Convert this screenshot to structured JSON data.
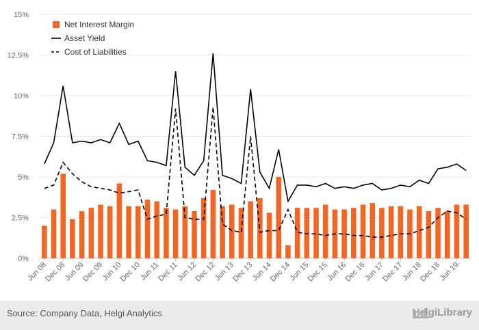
{
  "chart_data": {
    "type": "bar+line",
    "x": [
      "Jun 08",
      "Sep 08",
      "Dec 08",
      "Mar 09",
      "Jun 09",
      "Sep 09",
      "Dec 09",
      "Mar 10",
      "Jun 10",
      "Sep 10",
      "Dec 10",
      "Mar 11",
      "Jun 11",
      "Sep 11",
      "Dec 11",
      "Mar 12",
      "Jun 12",
      "Sep 12",
      "Dec 12",
      "Mar 13",
      "Jun 13",
      "Sep 13",
      "Dec 13",
      "Mar 14",
      "Jun 14",
      "Sep 14",
      "Dec 14",
      "Mar 15",
      "Jun 15",
      "Sep 15",
      "Dec 15",
      "Mar 16",
      "Jun 16",
      "Sep 16",
      "Dec 16",
      "Mar 17",
      "Jun 17",
      "Sep 17",
      "Dec 17",
      "Mar 18",
      "Jun 18",
      "Sep 18",
      "Dec 18",
      "Mar 19",
      "Jun 19",
      "Sep 19"
    ],
    "x_tick_labels": [
      "Jun 08",
      "Dec 08",
      "Jun 09",
      "Dec 09",
      "Jun 10",
      "Dec 10",
      "Jun 11",
      "Dec 11",
      "Jun 12",
      "Dec 12",
      "Jun 13",
      "Dec 13",
      "Jun 14",
      "Dec 14",
      "Jun 15",
      "Dec 15",
      "Jun 16",
      "Dec 16",
      "Jun 17",
      "Dec 17",
      "Jun 18",
      "Dec 18",
      "Jun 19"
    ],
    "y_tick_labels": [
      "0%",
      "2.5%",
      "5%",
      "7.5%",
      "10%",
      "12.5%",
      "15%"
    ],
    "y_ticks": [
      0,
      2.5,
      5,
      7.5,
      10,
      12.5,
      15
    ],
    "ylim": [
      0,
      15
    ],
    "grid": "horizontal",
    "legend_position": "top-left",
    "series": [
      {
        "name": "Net Interest Margin",
        "kind": "bar",
        "color": "#f26522",
        "values": [
          2.0,
          3.0,
          5.2,
          2.4,
          2.9,
          3.1,
          3.3,
          3.2,
          4.6,
          3.2,
          3.2,
          3.6,
          3.5,
          3.1,
          3.0,
          3.2,
          2.9,
          3.7,
          4.2,
          3.2,
          3.3,
          3.1,
          3.5,
          3.7,
          2.8,
          5.0,
          0.8,
          3.1,
          3.1,
          3.1,
          3.3,
          3.0,
          3.0,
          3.1,
          3.3,
          3.4,
          3.1,
          3.2,
          3.2,
          3.0,
          3.2,
          2.9,
          3.1,
          2.9,
          3.3,
          3.3
        ]
      },
      {
        "name": "Asset Yield",
        "kind": "line",
        "dash": "solid",
        "color": "#000000",
        "values": [
          5.8,
          7.1,
          10.6,
          7.1,
          7.2,
          7.1,
          7.3,
          7.1,
          8.3,
          7.0,
          7.2,
          6.0,
          5.9,
          5.7,
          11.5,
          5.6,
          5.1,
          6.0,
          12.6,
          5.1,
          4.9,
          4.6,
          10.4,
          5.3,
          4.3,
          6.7,
          3.5,
          4.5,
          4.5,
          4.4,
          4.6,
          4.3,
          4.4,
          4.3,
          4.5,
          4.6,
          4.2,
          4.3,
          4.5,
          4.4,
          4.8,
          4.6,
          5.5,
          5.6,
          5.8,
          5.4
        ]
      },
      {
        "name": "Cost of Liabilities",
        "kind": "line",
        "dash": "dashed",
        "color": "#000000",
        "values": [
          4.3,
          4.5,
          5.9,
          5.2,
          4.7,
          4.4,
          4.3,
          4.2,
          4.0,
          4.1,
          4.2,
          2.4,
          2.6,
          2.7,
          9.2,
          2.5,
          2.4,
          2.4,
          9.3,
          2.1,
          1.7,
          1.6,
          7.5,
          1.6,
          1.7,
          1.7,
          3.0,
          1.6,
          1.5,
          1.5,
          1.4,
          1.5,
          1.5,
          1.4,
          1.4,
          1.3,
          1.3,
          1.4,
          1.5,
          1.5,
          1.7,
          1.9,
          2.5,
          2.9,
          2.8,
          2.4
        ]
      }
    ]
  },
  "footer": {
    "source": "Source: Company Data, Helgi Analytics",
    "brand": "HelgiLibrary"
  }
}
